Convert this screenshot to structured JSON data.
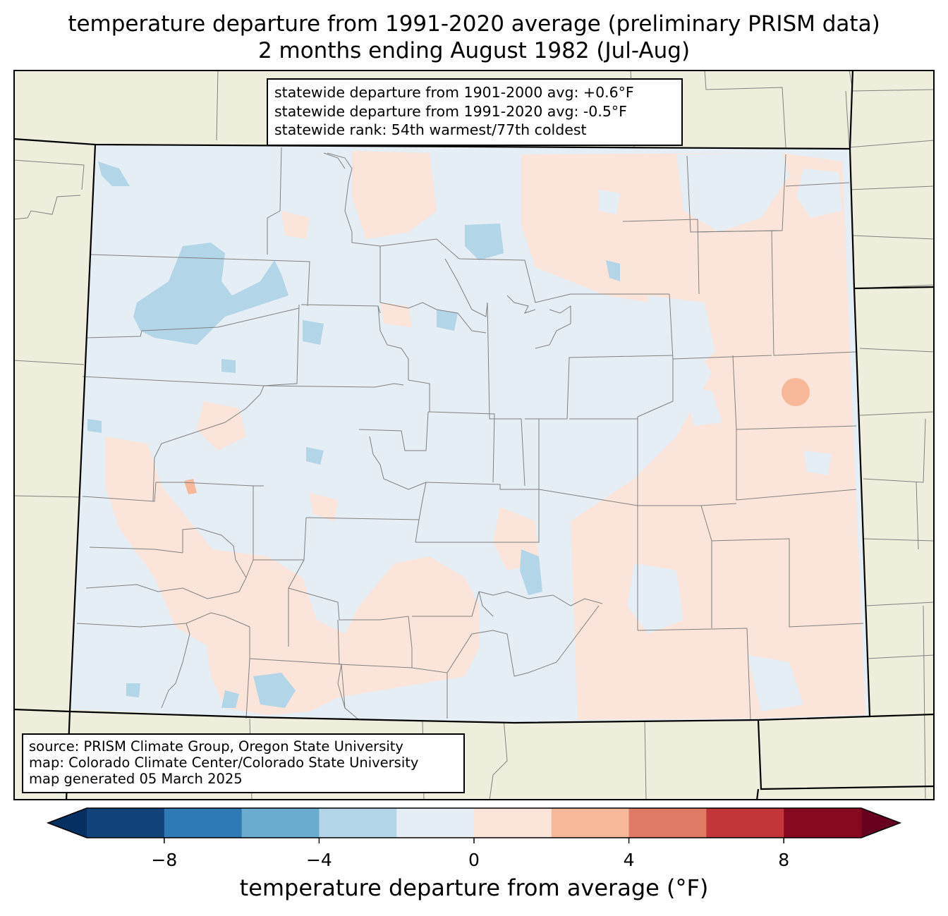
{
  "title": {
    "line1": "temperature departure from 1991-2020 average (preliminary PRISM data)",
    "line2": "2 months ending August 1982 (Jul-Aug)"
  },
  "stats": {
    "line1": "statewide departure from 1901-2000 avg: +0.6°F",
    "line2": "statewide departure from 1991-2020 avg: -0.5°F",
    "line3": "statewide rank: 54th warmest/77th coldest"
  },
  "source": {
    "line1": "source: PRISM Climate Group, Oregon State University",
    "line2": "map: Colorado Climate Center/Colorado State University",
    "line3": "map generated 05 March 2025"
  },
  "colorbar": {
    "label": "temperature departure from average (°F)",
    "bins": [
      -10,
      -8,
      -6,
      -4,
      -2,
      0,
      2,
      4,
      6,
      8,
      10
    ],
    "colors": [
      "#12427a",
      "#2f79b5",
      "#6aabd0",
      "#b2d5e8",
      "#e5edf5",
      "#fbe5da",
      "#f7b799",
      "#df7a64",
      "#c23639",
      "#87091f"
    ],
    "under_color": "#053061",
    "over_color": "#67001f",
    "ticks": [
      {
        "value": -8,
        "label": "−8"
      },
      {
        "value": -4,
        "label": "−4"
      },
      {
        "value": 0,
        "label": "0"
      },
      {
        "value": 4,
        "label": "4"
      },
      {
        "value": 8,
        "label": "8"
      }
    ]
  },
  "colors": {
    "background_land": "#efeedc",
    "state_fill_neutral": "#e5edf5",
    "county_line": "#808080",
    "state_border": "#000000"
  }
}
